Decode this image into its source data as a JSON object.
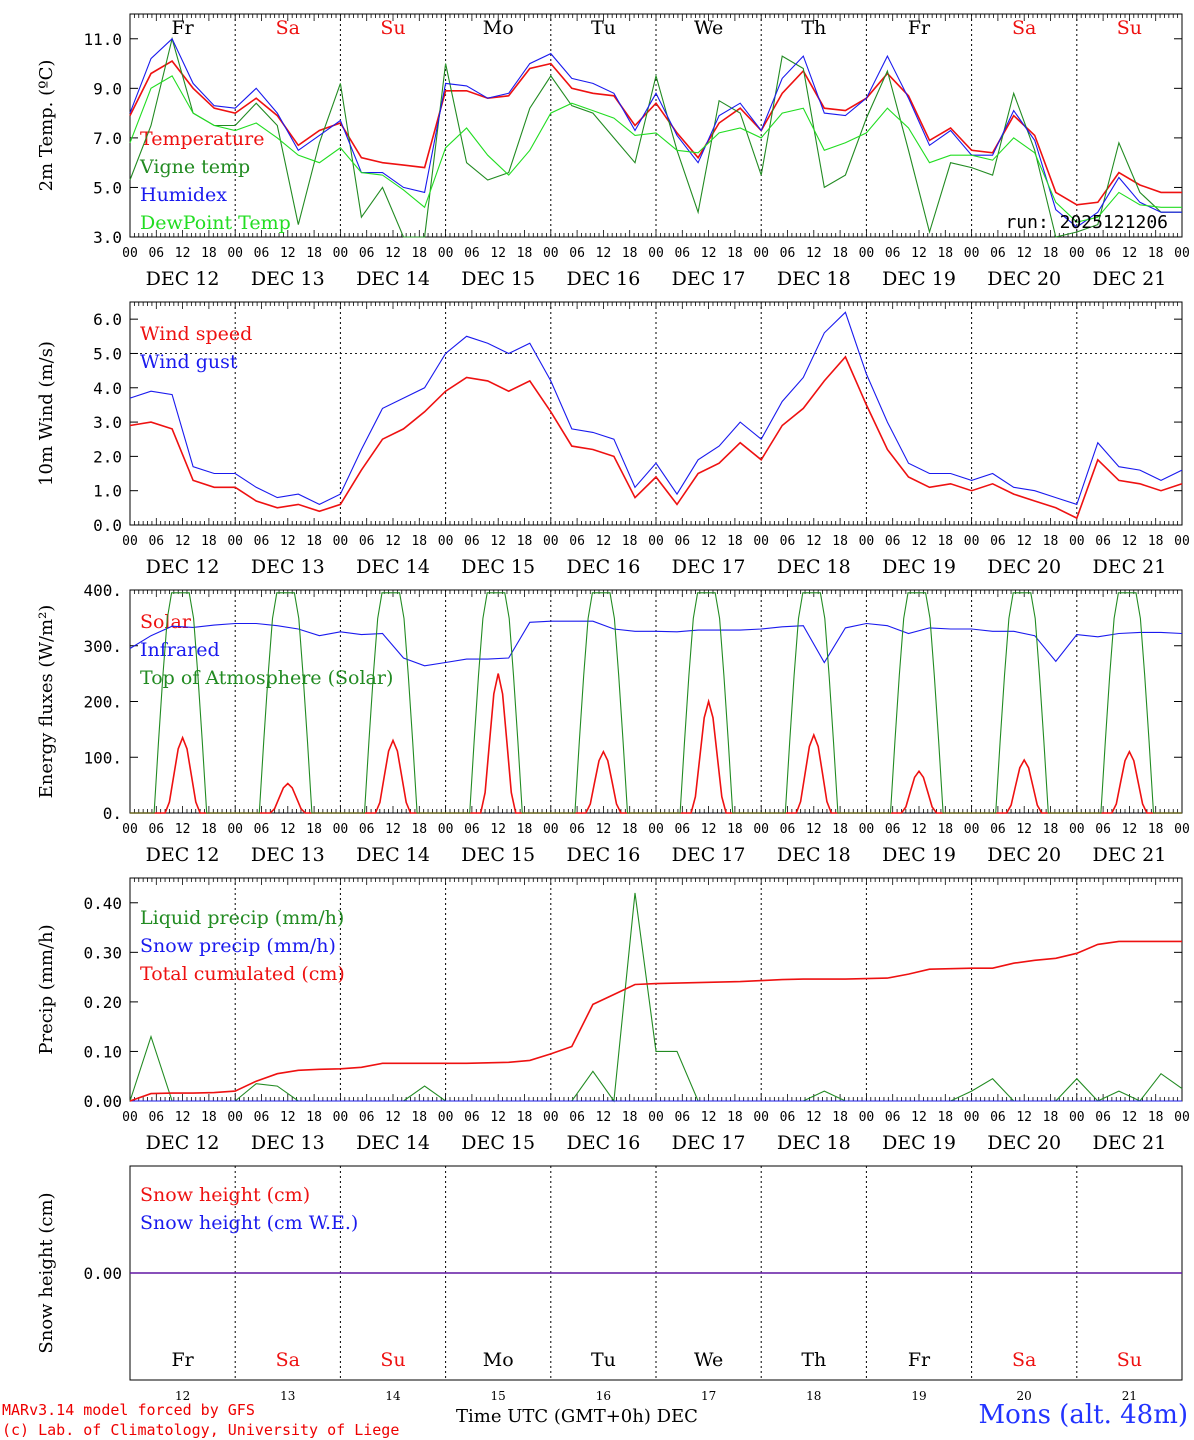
{
  "footer": {
    "model": "MARv3.14 model forced by GFS",
    "credit": "(c) Lab. of Climatology, University of Liege",
    "axis_title": "Time UTC (GMT+0h)",
    "month": "DEC",
    "location": "Mons (alt. 48m)"
  },
  "colors": {
    "red": "#ee1111",
    "blue": "#1a1aee",
    "green": "#228b22",
    "lightgreen": "#22dd22"
  },
  "chart_data": [
    {
      "type": "line",
      "ylabel": "2m Temp. (ºC)",
      "ylim": [
        3.0,
        12.0
      ],
      "yticks": [
        "3.0",
        "5.0",
        "7.0",
        "9.0",
        "11.0"
      ],
      "run_label": "run: 2025121206",
      "x": "hours from DEC 12 00 UTC (6-hourly values)",
      "day_names": [
        "Fr",
        "Sa",
        "Su",
        "Mo",
        "Tu",
        "We",
        "Th",
        "Fr",
        "Sa",
        "Su"
      ],
      "weekend_days": [
        1,
        2,
        8,
        9
      ],
      "day_labels": [
        "DEC 12",
        "DEC 13",
        "DEC 14",
        "DEC 15",
        "DEC 16",
        "DEC 17",
        "DEC 18",
        "DEC 19",
        "DEC 20",
        "DEC 21"
      ],
      "hour_labels": [
        "00",
        "06",
        "12",
        "18"
      ],
      "series": [
        {
          "name": "Temperature",
          "color": "#ee1111",
          "values": [
            7.9,
            9.6,
            10.1,
            9.0,
            8.2,
            8.0,
            8.6,
            7.9,
            6.7,
            7.3,
            7.6,
            6.2,
            6.0,
            5.9,
            5.8,
            8.9,
            8.9,
            8.6,
            8.7,
            9.8,
            10.0,
            9.0,
            8.8,
            8.7,
            7.5,
            8.4,
            7.2,
            6.2,
            7.6,
            8.2,
            7.3,
            8.8,
            9.7,
            8.2,
            8.1,
            8.6,
            9.6,
            8.7,
            6.9,
            7.4,
            6.5,
            6.4,
            7.9,
            7.1,
            4.8,
            4.3,
            4.4,
            5.6,
            5.1,
            4.8,
            4.8
          ]
        },
        {
          "name": "Vigne temp",
          "color": "#228b22",
          "values": [
            5.3,
            7.5,
            11.0,
            8.0,
            7.5,
            7.5,
            8.4,
            7.5,
            3.5,
            6.8,
            9.2,
            3.8,
            5.0,
            3.0,
            3.0,
            10.0,
            6.0,
            5.3,
            5.6,
            8.2,
            9.5,
            8.3,
            8.0,
            7.0,
            6.0,
            9.5,
            6.5,
            4.0,
            8.5,
            8.0,
            5.5,
            10.3,
            9.8,
            5.0,
            5.5,
            7.8,
            9.7,
            6.5,
            3.2,
            6.0,
            5.8,
            5.5,
            8.8,
            6.5,
            3.0,
            3.2,
            3.5,
            6.8,
            4.8,
            4.0,
            4.0
          ]
        },
        {
          "name": "Humidex",
          "color": "#1a1aee",
          "values": [
            8.0,
            10.2,
            11.0,
            9.2,
            8.3,
            8.2,
            9.0,
            8.0,
            6.5,
            7.1,
            7.7,
            5.6,
            5.6,
            5.0,
            4.8,
            9.2,
            9.1,
            8.6,
            8.8,
            10.0,
            10.4,
            9.4,
            9.2,
            8.8,
            7.3,
            8.8,
            7.1,
            6.0,
            7.9,
            8.4,
            7.3,
            9.4,
            10.3,
            8.0,
            7.9,
            8.6,
            10.3,
            8.6,
            6.7,
            7.3,
            6.3,
            6.3,
            8.1,
            6.9,
            4.1,
            3.4,
            4.0,
            5.4,
            4.4,
            4.0,
            4.0
          ]
        },
        {
          "name": "DewPoint Temp",
          "color": "#22dd22",
          "values": [
            6.8,
            9.0,
            9.5,
            8.0,
            7.5,
            7.3,
            7.6,
            7.0,
            6.3,
            6.0,
            6.6,
            5.6,
            5.5,
            4.9,
            4.2,
            6.6,
            7.4,
            6.3,
            5.5,
            6.5,
            8.0,
            8.4,
            8.1,
            7.8,
            7.1,
            7.2,
            6.5,
            6.4,
            7.2,
            7.4,
            7.0,
            8.0,
            8.2,
            6.5,
            6.8,
            7.2,
            8.2,
            7.4,
            6.0,
            6.3,
            6.3,
            6.1,
            7.0,
            6.4,
            4.4,
            3.6,
            3.8,
            4.8,
            4.3,
            4.2,
            4.2
          ]
        }
      ]
    },
    {
      "type": "line",
      "ylabel": "10m Wind (m/s)",
      "ylim": [
        0.0,
        6.5
      ],
      "yticks": [
        "0.0",
        "1.0",
        "2.0",
        "3.0",
        "4.0",
        "5.0",
        "6.0"
      ],
      "ref_line": 5.0,
      "day_labels": [
        "DEC 12",
        "DEC 13",
        "DEC 14",
        "DEC 15",
        "DEC 16",
        "DEC 17",
        "DEC 18",
        "DEC 19",
        "DEC 20",
        "DEC 21"
      ],
      "hour_labels": [
        "00",
        "06",
        "12",
        "18"
      ],
      "series": [
        {
          "name": "Wind speed",
          "color": "#ee1111",
          "values": [
            2.9,
            3.0,
            2.8,
            1.3,
            1.1,
            1.1,
            0.7,
            0.5,
            0.6,
            0.4,
            0.6,
            1.6,
            2.5,
            2.8,
            3.3,
            3.9,
            4.3,
            4.2,
            3.9,
            4.2,
            3.3,
            2.3,
            2.2,
            2.0,
            0.8,
            1.4,
            0.6,
            1.5,
            1.8,
            2.4,
            1.9,
            2.9,
            3.4,
            4.2,
            4.9,
            3.5,
            2.2,
            1.4,
            1.1,
            1.2,
            1.0,
            1.2,
            0.9,
            0.7,
            0.5,
            0.2,
            1.9,
            1.3,
            1.2,
            1.0,
            1.2
          ]
        },
        {
          "name": "Wind gust",
          "color": "#1a1aee",
          "values": [
            3.7,
            3.9,
            3.8,
            1.7,
            1.5,
            1.5,
            1.1,
            0.8,
            0.9,
            0.6,
            0.9,
            2.2,
            3.4,
            3.7,
            4.0,
            5.0,
            5.5,
            5.3,
            5.0,
            5.3,
            4.2,
            2.8,
            2.7,
            2.5,
            1.1,
            1.8,
            0.9,
            1.9,
            2.3,
            3.0,
            2.5,
            3.6,
            4.3,
            5.6,
            6.2,
            4.4,
            3.0,
            1.8,
            1.5,
            1.5,
            1.3,
            1.5,
            1.1,
            1.0,
            0.8,
            0.6,
            2.4,
            1.7,
            1.6,
            1.3,
            1.6
          ]
        }
      ]
    },
    {
      "type": "line",
      "ylabel": "Energy fluxes (W/m²)",
      "ylim": [
        0,
        400
      ],
      "yticks": [
        "0.",
        "100.",
        "200.",
        "300.",
        "400."
      ],
      "day_labels": [
        "DEC 12",
        "DEC 13",
        "DEC 14",
        "DEC 15",
        "DEC 16",
        "DEC 17",
        "DEC 18",
        "DEC 19",
        "DEC 20",
        "DEC 21"
      ],
      "hour_labels": [
        "00",
        "06",
        "12",
        "18"
      ],
      "series_daily": true,
      "series": [
        {
          "name": "Solar",
          "color": "#ee1111",
          "daily_peaks": [
            135,
            53,
            130,
            250,
            110,
            200,
            140,
            75,
            95,
            110
          ]
        },
        {
          "name": "Infrared",
          "color": "#1a1aee",
          "values": [
            295,
            318,
            335,
            333,
            337,
            340,
            340,
            336,
            330,
            318,
            325,
            320,
            322,
            278,
            264,
            270,
            276,
            276,
            278,
            342,
            344,
            344,
            344,
            330,
            326,
            326,
            325,
            328,
            328,
            328,
            330,
            334,
            336,
            270,
            332,
            340,
            336,
            322,
            332,
            330,
            330,
            326,
            326,
            318,
            272,
            320,
            316,
            322,
            324,
            324,
            322
          ]
        },
        {
          "name": "Top of Atmosphere (Solar)",
          "color": "#228b22",
          "daily_peaks": [
            395,
            395,
            395,
            395,
            395,
            395,
            395,
            395,
            395,
            395
          ]
        }
      ]
    },
    {
      "type": "line",
      "ylabel": "Precip (mm/h)",
      "ylim": [
        0.0,
        0.45
      ],
      "yticks": [
        "0.00",
        "0.10",
        "0.20",
        "0.30",
        "0.40"
      ],
      "day_labels": [
        "DEC 12",
        "DEC 13",
        "DEC 14",
        "DEC 15",
        "DEC 16",
        "DEC 17",
        "DEC 18",
        "DEC 19",
        "DEC 20",
        "DEC 21"
      ],
      "hour_labels": [
        "00",
        "06",
        "12",
        "18"
      ],
      "series": [
        {
          "name": "Liquid precip (mm/h)",
          "color": "#228b22",
          "values": [
            0.0,
            0.13,
            0.0,
            0.0,
            0.0,
            0.0,
            0.035,
            0.03,
            0.0,
            0.0,
            0.0,
            0.0,
            0.0,
            0.0,
            0.03,
            0.0,
            0.0,
            0.0,
            0.0,
            0.0,
            0.0,
            0.0,
            0.06,
            0.0,
            0.42,
            0.1,
            0.1,
            0.0,
            0.0,
            0.0,
            0.0,
            0.0,
            0.0,
            0.02,
            0.0,
            0.0,
            0.0,
            0.0,
            0.0,
            0.0,
            0.02,
            0.045,
            0.0,
            0.0,
            0.0,
            0.045,
            0.0,
            0.02,
            0.0,
            0.055,
            0.025
          ]
        },
        {
          "name": "Snow precip (mm/h)",
          "color": "#1a1aee",
          "values": [
            0,
            0,
            0,
            0,
            0,
            0,
            0,
            0,
            0,
            0,
            0,
            0,
            0,
            0,
            0,
            0,
            0,
            0,
            0,
            0,
            0,
            0,
            0,
            0,
            0,
            0,
            0,
            0,
            0,
            0,
            0,
            0,
            0,
            0,
            0,
            0,
            0,
            0,
            0,
            0,
            0,
            0,
            0,
            0,
            0,
            0,
            0,
            0,
            0,
            0,
            0
          ]
        },
        {
          "name": "Total cumulated (cm)",
          "color": "#ee1111",
          "values": [
            0.0,
            0.015,
            0.016,
            0.016,
            0.017,
            0.02,
            0.04,
            0.055,
            0.062,
            0.064,
            0.065,
            0.068,
            0.076,
            0.076,
            0.076,
            0.076,
            0.076,
            0.077,
            0.078,
            0.082,
            0.095,
            0.11,
            0.195,
            0.215,
            0.235,
            0.237,
            0.238,
            0.239,
            0.24,
            0.241,
            0.243,
            0.245,
            0.246,
            0.246,
            0.246,
            0.247,
            0.248,
            0.256,
            0.266,
            0.267,
            0.268,
            0.268,
            0.278,
            0.284,
            0.288,
            0.298,
            0.316,
            0.322,
            0.322,
            0.322,
            0.322
          ]
        }
      ]
    },
    {
      "type": "line",
      "ylabel": "Snow height (cm)",
      "ylim": [
        -0.5,
        0.5
      ],
      "yticks": [
        "0.00"
      ],
      "day_names": [
        "Fr",
        "Sa",
        "Su",
        "Mo",
        "Tu",
        "We",
        "Th",
        "Fr",
        "Sa",
        "Su"
      ],
      "weekend_days": [
        1,
        2,
        8,
        9
      ],
      "day_numbers": [
        "12",
        "13",
        "14",
        "15",
        "16",
        "17",
        "18",
        "19",
        "20",
        "21"
      ],
      "series": [
        {
          "name": "Snow height (cm)",
          "color": "#ee1111",
          "values": [
            0,
            0
          ]
        },
        {
          "name": "Snow height (cm W.E.)",
          "color": "#1a1aee",
          "values": [
            0,
            0
          ]
        }
      ]
    }
  ]
}
